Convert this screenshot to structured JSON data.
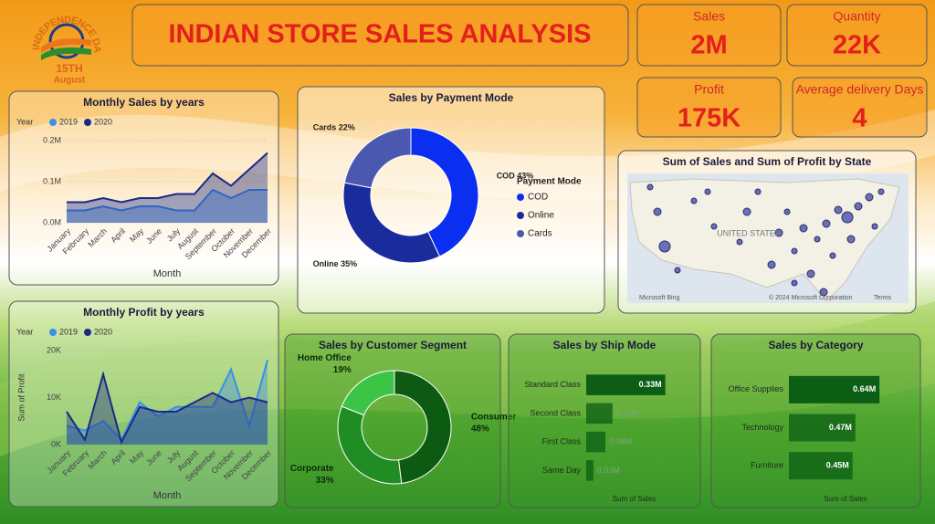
{
  "header": {
    "title": "INDIAN STORE SALES ANALYSIS",
    "logo": {
      "arc_text": "INDEPENDENCE DAY",
      "date": "15TH",
      "month": "August"
    }
  },
  "kpis": [
    {
      "label": "Sales",
      "value": "2M"
    },
    {
      "label": "Quantity",
      "value": "22K"
    },
    {
      "label": "Profit",
      "value": "175K"
    },
    {
      "label": "Average delivery Days",
      "value": "4"
    }
  ],
  "map": {
    "title": "Sum of Sales and Sum of Profit by State",
    "country": "UNITED STATES",
    "provider": "Microsoft Bing",
    "copyright": "© 2024 Microsoft Corporation",
    "terms": "Terms"
  },
  "chart_data": [
    {
      "type": "area",
      "title": "Monthly Sales by years",
      "legend_title": "Year",
      "categories": [
        "January",
        "February",
        "March",
        "April",
        "May",
        "June",
        "July",
        "August",
        "September",
        "October",
        "November",
        "December"
      ],
      "series": [
        {
          "name": "2019",
          "color": "#3b8fe6",
          "values": [
            30000,
            30000,
            40000,
            30000,
            40000,
            40000,
            30000,
            30000,
            80000,
            60000,
            80000,
            80000
          ]
        },
        {
          "name": "2020",
          "color": "#1c2a86",
          "values": [
            50000,
            50000,
            60000,
            50000,
            60000,
            60000,
            70000,
            70000,
            120000,
            90000,
            130000,
            170000
          ]
        }
      ],
      "ylim": [
        0,
        200000
      ],
      "yticks": [
        {
          "value": 0,
          "label": "0.0M"
        },
        {
          "value": 100000,
          "label": "0.1M"
        },
        {
          "value": 200000,
          "label": "0.2M"
        }
      ],
      "xlabel": "Month"
    },
    {
      "type": "donut",
      "title": "Sales by Payment Mode",
      "legend_title": "Payment Mode",
      "categories": [
        "COD",
        "Online",
        "Cards"
      ],
      "values": [
        43,
        35,
        22
      ],
      "value_labels": [
        "COD 43%",
        "Online 35%",
        "Cards 22%"
      ],
      "colors": [
        "#0a2ff0",
        "#1a2b9c",
        "#4a58b0"
      ]
    },
    {
      "type": "area",
      "title": "Monthly Profit by years",
      "legend_title": "Year",
      "categories": [
        "January",
        "February",
        "March",
        "April",
        "May",
        "June",
        "July",
        "August",
        "September",
        "October",
        "November",
        "December"
      ],
      "series": [
        {
          "name": "2019",
          "color": "#3b8fe6",
          "values": [
            4000,
            3000,
            5000,
            1000,
            9000,
            6000,
            8000,
            8000,
            8000,
            16000,
            4000,
            18000
          ]
        },
        {
          "name": "2020",
          "color": "#1c2a86",
          "values": [
            7000,
            1000,
            15000,
            500,
            8000,
            7000,
            7000,
            9000,
            11000,
            9000,
            10000,
            9000
          ]
        }
      ],
      "ylim": [
        0,
        20000
      ],
      "yticks": [
        {
          "value": 0,
          "label": "0K"
        },
        {
          "value": 10000,
          "label": "10K"
        },
        {
          "value": 20000,
          "label": "20K"
        }
      ],
      "xlabel": "Month",
      "ylabel": "Sum of Profit"
    },
    {
      "type": "donut",
      "title": "Sales by Customer Segment",
      "categories": [
        "Consumer",
        "Corporate",
        "Home Office"
      ],
      "values": [
        48,
        33,
        19
      ],
      "value_labels": [
        "48%",
        "33%",
        "19%"
      ],
      "colors": [
        "#0d5a12",
        "#1f8d24",
        "#3cc447"
      ]
    },
    {
      "type": "hbar",
      "title": "Sales by Ship Mode",
      "categories": [
        "Standard Class",
        "Second Class",
        "First Class",
        "Same Day"
      ],
      "values": [
        330000,
        110000,
        80000,
        30000
      ],
      "value_labels": [
        "0.33M",
        "0.11M",
        "0.08M",
        "0.03M"
      ],
      "xlim": [
        0,
        400000
      ],
      "xlabel": "Sum of Sales",
      "color": "#0b5e14"
    },
    {
      "type": "hbar",
      "title": "Sales by Category",
      "categories": [
        "Office Supplies",
        "Technology",
        "Furniture"
      ],
      "values": [
        640000,
        470000,
        450000
      ],
      "value_labels": [
        "0.64M",
        "0.47M",
        "0.45M"
      ],
      "xlim": [
        0,
        800000
      ],
      "xlabel": "Sum of Sales",
      "color": "#0b5e14"
    }
  ]
}
